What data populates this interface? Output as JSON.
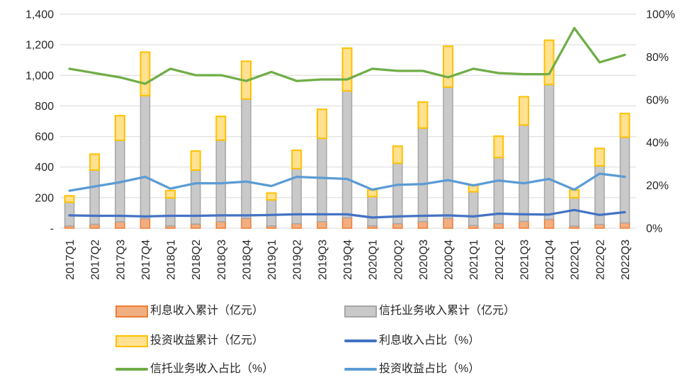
{
  "chart_data": {
    "type": "combo",
    "subtype": "stacked-bar-with-lines",
    "title": "",
    "categories": [
      "2017Q1",
      "2017Q2",
      "2017Q3",
      "2017Q4",
      "2018Q1",
      "2018Q2",
      "2018Q3",
      "2018Q4",
      "2019Q1",
      "2019Q2",
      "2019Q3",
      "2019Q4",
      "2020Q1",
      "2020Q2",
      "2020Q3",
      "2020Q4",
      "2021Q1",
      "2021Q2",
      "2021Q3",
      "2021Q4",
      "2022Q1",
      "2022Q2",
      "2022Q3"
    ],
    "left_axis": {
      "min": 0,
      "max": 1400,
      "ticks": [
        {
          "label": "1,400",
          "value": 1400
        },
        {
          "label": "1,200",
          "value": 1200
        },
        {
          "label": "1,000",
          "value": 1000
        },
        {
          "label": "800",
          "value": 800
        },
        {
          "label": "600",
          "value": 600
        },
        {
          "label": "400",
          "value": 400
        },
        {
          "label": "200",
          "value": 200
        },
        {
          "label": "-",
          "value": 0
        }
      ]
    },
    "right_axis": {
      "min": 0,
      "max": 100,
      "ticks": [
        {
          "label": "100%",
          "value": 100
        },
        {
          "label": "80%",
          "value": 80
        },
        {
          "label": "60%",
          "value": 60
        },
        {
          "label": "40%",
          "value": 40
        },
        {
          "label": "20%",
          "value": 20
        },
        {
          "label": "0%",
          "value": 0
        }
      ]
    },
    "bar_series": [
      {
        "id": "interest-income",
        "name": "利息收入累计（亿元）",
        "fill": "#F2AE83",
        "border": "#ED7D31",
        "values": [
          15,
          26,
          42,
          62,
          16,
          27,
          43,
          65,
          15,
          30,
          43,
          68,
          15,
          30,
          43,
          65,
          18,
          30,
          45,
          58,
          14,
          25,
          35
        ]
      },
      {
        "id": "trust-income",
        "name": "信托业务收入累计（亿元）",
        "fill": "#C9C9C9",
        "border": "#A6A6A6",
        "values": [
          155,
          354,
          532,
          805,
          182,
          353,
          533,
          780,
          170,
          360,
          545,
          830,
          192,
          395,
          612,
          858,
          220,
          432,
          630,
          882,
          185,
          383,
          560
        ]
      },
      {
        "id": "investment-income",
        "name": "投资收益累计（亿元）",
        "fill": "#FFE18F",
        "border": "#FFC000",
        "values": [
          42,
          105,
          162,
          285,
          48,
          125,
          156,
          247,
          45,
          120,
          190,
          280,
          43,
          112,
          170,
          268,
          47,
          140,
          185,
          290,
          51,
          114,
          155
        ]
      }
    ],
    "line_series": [
      {
        "id": "interest-ratio",
        "name": "利息收入占比（%）",
        "color": "#4472C4",
        "values": [
          6.0,
          5.8,
          5.8,
          5.5,
          5.8,
          5.8,
          6.0,
          6.0,
          6.2,
          6.5,
          6.5,
          6.5,
          5.0,
          5.5,
          5.8,
          6.0,
          5.5,
          6.8,
          6.5,
          6.4,
          8.5,
          6.2,
          7.5
        ]
      },
      {
        "id": "trust-ratio",
        "name": "信托业务收入占比（%）",
        "color": "#70AD47",
        "values": [
          74.5,
          72.5,
          70.5,
          67.5,
          74.5,
          71.5,
          71.5,
          68.8,
          73.0,
          68.8,
          69.5,
          69.5,
          74.5,
          73.5,
          73.5,
          70.5,
          74.5,
          72.5,
          72.0,
          72.0,
          93.5,
          77.5,
          81.0
        ]
      },
      {
        "id": "investment-ratio",
        "name": "投资收益占比（%）",
        "color": "#5B9BD5",
        "values": [
          17.5,
          19.5,
          21.5,
          24.0,
          18.5,
          21.0,
          21.0,
          21.8,
          19.7,
          24.0,
          23.5,
          23.0,
          18.0,
          20.3,
          20.6,
          22.5,
          20.0,
          22.3,
          21.0,
          23.0,
          18.0,
          25.5,
          24.0
        ]
      }
    ],
    "legend": [
      {
        "label": "利息收入累计（亿元）",
        "swatch": "bar",
        "fill": "#F2AE83",
        "border": "#ED7D31"
      },
      {
        "label": "信托业务收入累计（亿元）",
        "swatch": "bar",
        "fill": "#C9C9C9",
        "border": "#A6A6A6"
      },
      {
        "label": "投资收益累计（亿元）",
        "swatch": "bar",
        "fill": "#FFE18F",
        "border": "#FFC000"
      },
      {
        "label": "利息收入占比（%）",
        "swatch": "line",
        "color": "#4472C4"
      },
      {
        "label": "信托业务收入占比（%）",
        "swatch": "line",
        "color": "#70AD47"
      },
      {
        "label": "投资收益占比（%）",
        "swatch": "line",
        "color": "#5B9BD5"
      }
    ],
    "style": {
      "gridline_color": "#D9D9D9",
      "axis_text_color": "#262626",
      "grid": "horizontal-only",
      "legend_position": "bottom"
    }
  }
}
